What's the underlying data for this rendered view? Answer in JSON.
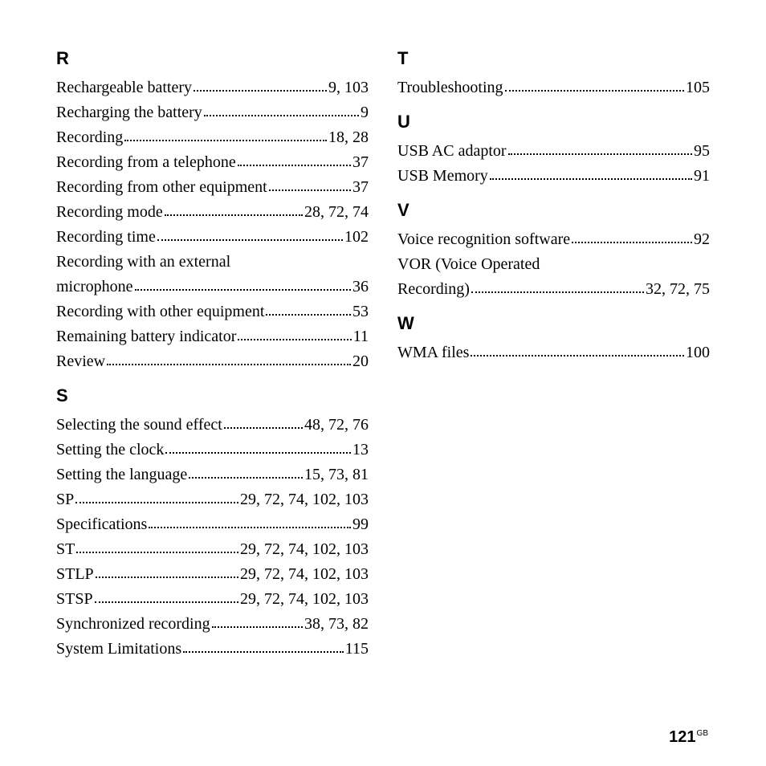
{
  "columns": [
    {
      "sections": [
        {
          "letter": "R",
          "entries": [
            {
              "term": "Rechargeable battery",
              "pages": "9, 103"
            },
            {
              "term": "Recharging the battery",
              "pages": "9"
            },
            {
              "term": "Recording",
              "pages": "18, 28"
            },
            {
              "term": "Recording from a telephone",
              "pages": "37"
            },
            {
              "term": "Recording from other equipment",
              "pages": "37"
            },
            {
              "term": "Recording mode",
              "pages": "28, 72, 74"
            },
            {
              "term": "Recording time",
              "pages": "102"
            },
            {
              "term": "Recording with an external",
              "wrap": true
            },
            {
              "term": "microphone",
              "pages": "36"
            },
            {
              "term": "Recording with other equipment",
              "pages": "53"
            },
            {
              "term": "Remaining battery indicator",
              "pages": "11"
            },
            {
              "term": "Review",
              "pages": "20"
            }
          ]
        },
        {
          "letter": "S",
          "entries": [
            {
              "term": "Selecting the sound effect",
              "pages": "48, 72, 76"
            },
            {
              "term": "Setting the clock",
              "pages": "13"
            },
            {
              "term": "Setting the language",
              "pages": "15, 73, 81"
            },
            {
              "term": "SP",
              "pages": "29, 72, 74, 102, 103"
            },
            {
              "term": "Specifications",
              "pages": "99"
            },
            {
              "term": "ST",
              "pages": "29, 72, 74, 102, 103"
            },
            {
              "term": "STLP",
              "pages": "29, 72, 74, 102, 103"
            },
            {
              "term": "STSP",
              "pages": "29, 72, 74, 102, 103"
            },
            {
              "term": "Synchronized recording",
              "pages": "38, 73, 82"
            },
            {
              "term": "System Limitations",
              "pages": "115"
            }
          ]
        }
      ]
    },
    {
      "sections": [
        {
          "letter": "T",
          "entries": [
            {
              "term": "Troubleshooting",
              "pages": "105"
            }
          ]
        },
        {
          "letter": "U",
          "entries": [
            {
              "term": "USB AC adaptor",
              "pages": "95"
            },
            {
              "term": "USB Memory",
              "pages": "91"
            }
          ]
        },
        {
          "letter": "V",
          "entries": [
            {
              "term": "Voice recognition software",
              "pages": "92"
            },
            {
              "term": "VOR (Voice Operated",
              "wrap": true
            },
            {
              "term": "Recording)",
              "pages": "32, 72, 75"
            }
          ]
        },
        {
          "letter": "W",
          "entries": [
            {
              "term": "WMA files",
              "pages": "100"
            }
          ]
        }
      ]
    }
  ],
  "page_number": "121",
  "page_number_suffix": "GB"
}
